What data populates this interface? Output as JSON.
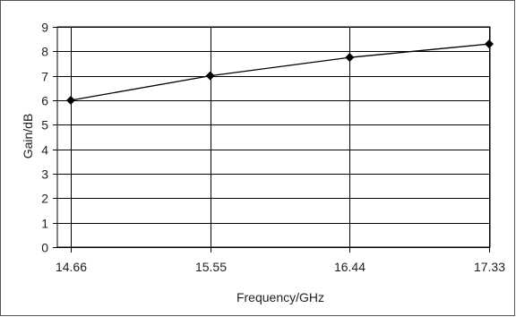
{
  "chart_data": {
    "type": "line",
    "title": "",
    "xlabel": "Frequency/GHz",
    "ylabel": "Gain/dB",
    "x": [
      "14.66",
      "15.55",
      "16.44",
      "17.33"
    ],
    "series": [
      {
        "values": [
          6.0,
          7.0,
          7.75,
          8.3
        ]
      }
    ],
    "ylim": [
      0,
      9
    ],
    "yticks": [
      "0",
      "1",
      "2",
      "3",
      "4",
      "5",
      "6",
      "7",
      "8",
      "9"
    ],
    "grid": "on",
    "legend": "none",
    "marker": "diamond",
    "colors": {
      "line": "#000000",
      "grid": "#000000"
    }
  }
}
